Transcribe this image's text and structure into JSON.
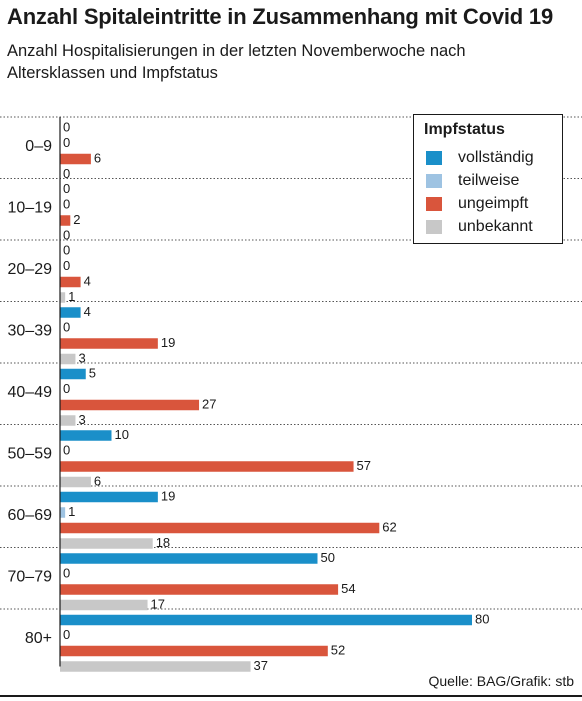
{
  "header": {
    "title": "Anzahl Spitaleintritte in Zusammenhang mit Covid 19",
    "subtitle": "Anzahl Hospitalisierungen in der letzten Novemberwoche nach Altersklassen und Impfstatus"
  },
  "legend": {
    "title": "Impfstatus"
  },
  "footer": {
    "source": "Quelle: BAG/Grafik: stb"
  },
  "chart_data": {
    "type": "bar",
    "orientation": "horizontal",
    "categories": [
      "0–9",
      "10–19",
      "20–29",
      "30–39",
      "40–49",
      "50–59",
      "60–69",
      "70–79",
      "80+"
    ],
    "series": [
      {
        "name": "vollständig",
        "color": "#1a8fc9",
        "values": [
          0,
          0,
          0,
          4,
          5,
          10,
          19,
          50,
          80
        ]
      },
      {
        "name": "teilweise",
        "color": "#9ec3e2",
        "values": [
          0,
          0,
          0,
          0,
          0,
          0,
          1,
          0,
          0
        ]
      },
      {
        "name": "ungeimpft",
        "color": "#d9553c",
        "values": [
          6,
          2,
          4,
          19,
          27,
          57,
          62,
          54,
          52
        ]
      },
      {
        "name": "unbekannt",
        "color": "#c8c8c8",
        "values": [
          0,
          0,
          1,
          3,
          3,
          6,
          18,
          17,
          37
        ]
      }
    ],
    "data_labels": true,
    "legend_position": "top-right",
    "grid": "dotted separators between age groups"
  }
}
